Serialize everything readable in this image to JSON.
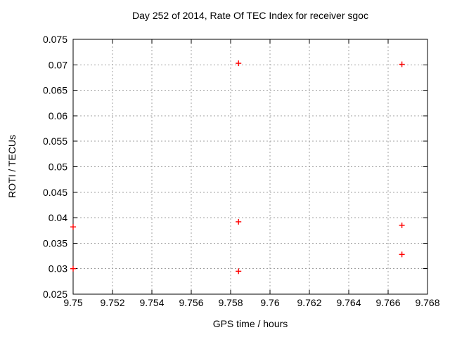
{
  "chart_data": {
    "type": "scatter",
    "title": "Day 252 of 2014, Rate Of TEC Index for receiver sgoc",
    "xlabel": "GPS time / hours",
    "ylabel": "ROTI / TECUs",
    "xlim": [
      9.75,
      9.768
    ],
    "ylim": [
      0.025,
      0.075
    ],
    "xticks": [
      "9.75",
      "9.752",
      "9.754",
      "9.756",
      "9.758",
      "9.76",
      "9.762",
      "9.764",
      "9.766",
      "9.768"
    ],
    "yticks": [
      "0.025",
      "0.03",
      "0.035",
      "0.04",
      "0.045",
      "0.05",
      "0.055",
      "0.06",
      "0.065",
      "0.07",
      "0.075"
    ],
    "grid": true,
    "legend": "none",
    "marker": "plus",
    "marker_color": "#ff0000",
    "grid_color": "#a0a0a0",
    "axis_color": "#000000",
    "series": [
      {
        "name": "ROTI",
        "points": [
          {
            "x": 9.75,
            "y": 0.0382
          },
          {
            "x": 9.75,
            "y": 0.03
          },
          {
            "x": 9.7584,
            "y": 0.0703
          },
          {
            "x": 9.7584,
            "y": 0.0392
          },
          {
            "x": 9.7584,
            "y": 0.0295
          },
          {
            "x": 9.7667,
            "y": 0.0701
          },
          {
            "x": 9.7667,
            "y": 0.0385
          },
          {
            "x": 9.7667,
            "y": 0.0328
          }
        ]
      }
    ]
  }
}
